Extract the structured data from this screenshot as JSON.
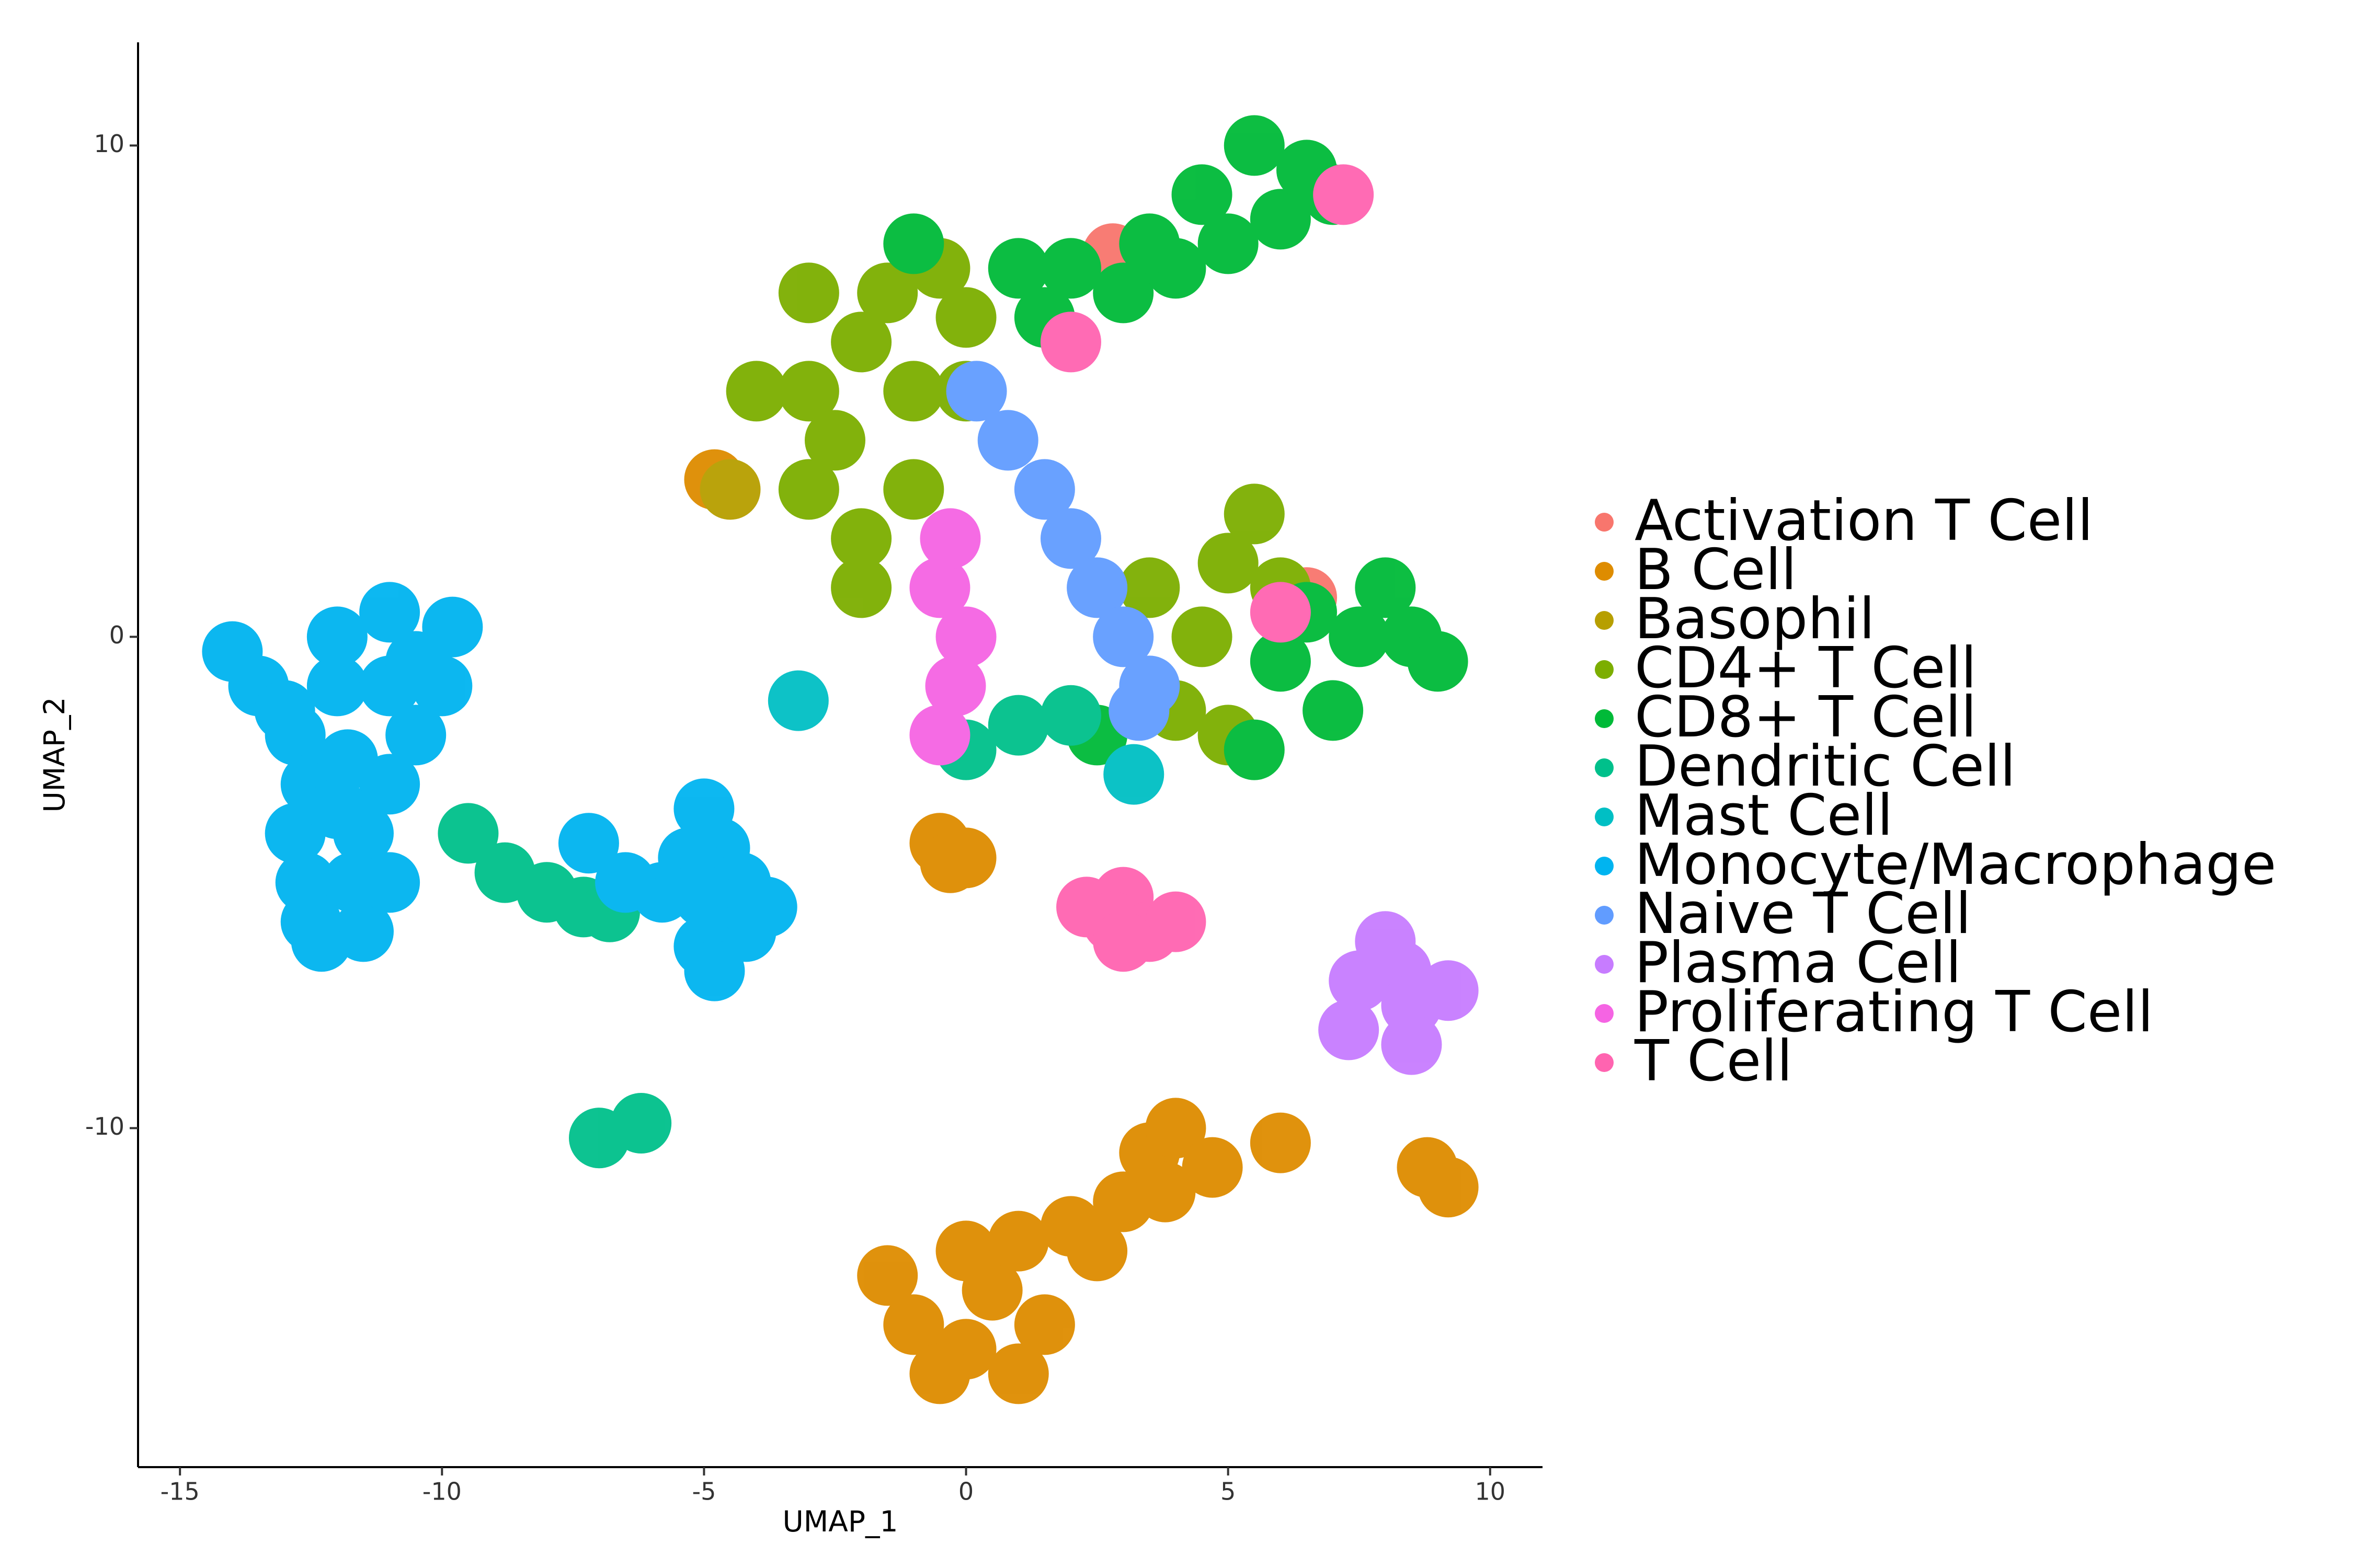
{
  "chart_data": {
    "type": "scatter",
    "x_label": "UMAP_1",
    "y_label": "UMAP_2",
    "xlim": [
      -15.8,
      11
    ],
    "ylim": [
      -16.9,
      12.1
    ],
    "xticks": [
      -15,
      -10,
      -5,
      0,
      5,
      10
    ],
    "yticks": [
      -10,
      0,
      10
    ],
    "grid": false,
    "legend": "right",
    "series": [
      {
        "name": "Activation T Cell",
        "color": "#F8766D",
        "x": [
          6.5,
          2.8
        ],
        "y": [
          0.8,
          7.8
        ]
      },
      {
        "name": "B Cell",
        "color": "#DE8C00",
        "x": [
          0,
          -1,
          -1.5,
          0.5,
          1.5,
          0,
          1,
          2,
          3,
          3.5,
          4,
          4.7,
          3.8,
          2.5,
          -0.5,
          1,
          9.2,
          8.8,
          6,
          -0.5,
          -0.3,
          0,
          -4.8
        ],
        "y": [
          -14.5,
          -14,
          -13,
          -13.3,
          -14,
          -12.5,
          -12.3,
          -12,
          -11.5,
          -10.5,
          -10,
          -10.8,
          -11.3,
          -12.5,
          -15,
          -15,
          -11.2,
          -10.8,
          -10.3,
          -4.2,
          -4.6,
          -4.5,
          3.2
        ]
      },
      {
        "name": "Basophil",
        "color": "#B79F00",
        "x": [
          -4.5
        ],
        "y": [
          3
        ]
      },
      {
        "name": "CD4+ T Cell",
        "color": "#7CAE00",
        "x": [
          -3,
          -2,
          -2.5,
          -1,
          -3,
          -2,
          -1.5,
          -3,
          -4,
          -1,
          0,
          -2,
          -0.5,
          0,
          5,
          5.5,
          4.5,
          4,
          5,
          6,
          3.5
        ],
        "y": [
          5,
          6,
          4,
          3,
          3,
          2,
          7,
          7,
          5,
          5,
          5,
          1,
          7.5,
          6.5,
          1.5,
          2.5,
          0,
          -1.5,
          -2,
          1,
          1
        ]
      },
      {
        "name": "CD8+ T Cell",
        "color": "#00BA38",
        "x": [
          1,
          2,
          3,
          4,
          5,
          6,
          6.5,
          7,
          5.5,
          4.5,
          -1,
          1.5,
          3.5,
          6.5,
          7.5,
          8.5,
          9,
          7,
          6,
          8,
          5.5,
          2.5
        ],
        "y": [
          7.5,
          7.5,
          7,
          7.5,
          8,
          8.5,
          9.5,
          9,
          10,
          9,
          8,
          6.5,
          8,
          0.5,
          0,
          0,
          -0.5,
          -1.5,
          -0.5,
          1,
          -2.3,
          -2
        ]
      },
      {
        "name": "Dendritic Cell",
        "color": "#00C08B",
        "x": [
          -9.5,
          -8.8,
          -8,
          -7.3,
          -6.8,
          -7,
          -6.2,
          1,
          0,
          2
        ],
        "y": [
          -4,
          -4.8,
          -5.2,
          -5.5,
          -5.6,
          -10.2,
          -9.9,
          -1.8,
          -2.3,
          -1.6
        ]
      },
      {
        "name": "Mast Cell",
        "color": "#00BFC4",
        "x": [
          -3.2,
          3.2
        ],
        "y": [
          -1.3,
          -2.8
        ]
      },
      {
        "name": "Monocyte/Macrophage",
        "color": "#00B4F0",
        "x": [
          -14,
          -13.5,
          -12.8,
          -12.5,
          -12.8,
          -12.6,
          -12.3,
          -11.5,
          -11,
          -11.5,
          -11,
          -10.5,
          -10,
          -9.8,
          -11,
          -12,
          -12,
          -11,
          -11.8,
          -12,
          -11.7,
          -10.5,
          -13,
          -12.5,
          -5,
          -4.7,
          -5.3,
          -4.3,
          -5,
          -5.8,
          -6.5,
          -4.2,
          -5,
          -4.8,
          -7.2,
          -3.8
        ],
        "y": [
          -0.3,
          -1,
          -2,
          -3,
          -4,
          -5,
          -6.2,
          -6,
          -5,
          -4,
          -3,
          -2,
          -1,
          0.2,
          0.5,
          0,
          -1,
          -1,
          -2.5,
          -3.5,
          -5,
          -0.5,
          -1.5,
          -5.8,
          -3.5,
          -4.3,
          -4.5,
          -5,
          -5.3,
          -5.2,
          -5,
          -6,
          -6.3,
          -6.8,
          -4.2,
          -5.5
        ]
      },
      {
        "name": "Naive T Cell",
        "color": "#619CFF",
        "x": [
          0.2,
          0.8,
          1.5,
          2,
          2.5,
          3,
          3.5,
          3.3
        ],
        "y": [
          5,
          4,
          3,
          2,
          1,
          0,
          -1,
          -1.5
        ]
      },
      {
        "name": "Plasma Cell",
        "color": "#C77CFF",
        "x": [
          7.5,
          8.3,
          9.2,
          8.5,
          7.3,
          8,
          8.5
        ],
        "y": [
          -7,
          -6.8,
          -7.2,
          -7.5,
          -8,
          -6.2,
          -8.3
        ]
      },
      {
        "name": "Proliferating T Cell",
        "color": "#F564E3",
        "x": [
          -0.5,
          -0.2,
          0,
          -0.5,
          -0.3
        ],
        "y": [
          -2,
          -1,
          0,
          1,
          2
        ]
      },
      {
        "name": "T Cell",
        "color": "#FF64B0",
        "x": [
          3,
          2.3,
          2.8,
          3.5,
          4,
          3,
          6,
          2,
          7.2
        ],
        "y": [
          -5.3,
          -5.5,
          -5.8,
          -6,
          -5.8,
          -6.2,
          0.5,
          6,
          9
        ]
      }
    ]
  }
}
